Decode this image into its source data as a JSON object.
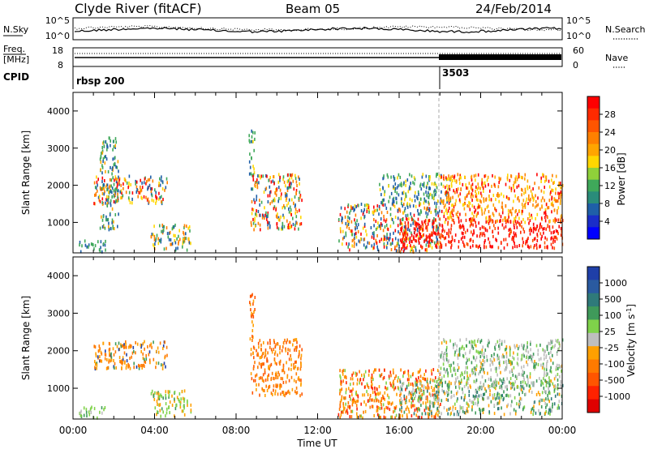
{
  "header": {
    "title": "Clyde River (fitACF)",
    "beam": "Beam 05",
    "date": "24/Feb/2014"
  },
  "nsky_panel": {
    "left_label": "N.Sky",
    "left_ticks": [
      "10^5",
      "10^0"
    ],
    "right_ticks": [
      "10^5",
      "10^0"
    ],
    "right_label": "N.Search"
  },
  "freq_panel": {
    "left_label_top": "Freq.",
    "left_label_bottom": "[MHz]",
    "left_ticks": [
      "18",
      "8"
    ],
    "right_ticks": [
      "60",
      "0"
    ],
    "right_label": "Nave"
  },
  "cpid_panel": {
    "label": "CPID",
    "segments": [
      {
        "start_hour": 0,
        "text": "rbsp 200"
      },
      {
        "start_hour": 18,
        "text": "3503"
      }
    ]
  },
  "x_axis": {
    "title": "Time UT",
    "tick_labels": [
      "00:00",
      "04:00",
      "08:00",
      "12:00",
      "16:00",
      "20:00",
      "00:00"
    ],
    "range_hours": [
      0,
      24
    ]
  },
  "power_colorbar": {
    "title": "Power [dB]",
    "tick_labels": [
      "28",
      "24",
      "20",
      "16",
      "12",
      "8",
      "4"
    ],
    "colors": [
      "#ff0000",
      "#ff2a00",
      "#ff5500",
      "#ff8000",
      "#ffa500",
      "#ffd700",
      "#8fd13a",
      "#3fa85a",
      "#2a8c7a",
      "#1f5fa8",
      "#1a2dc8",
      "#0000ff"
    ]
  },
  "velocity_colorbar": {
    "title": "Velocity [m s^-1]",
    "tick_labels": [
      "1000",
      "500",
      "100",
      "25",
      "-25",
      "-100",
      "-500",
      "-1000"
    ],
    "colors": [
      "#1f3fa8",
      "#2a5aa0",
      "#2f7a7a",
      "#3f9a5a",
      "#7fd24a",
      "#bebebe",
      "#ffa000",
      "#ff7a00",
      "#ff5500",
      "#ff2200",
      "#e00000"
    ]
  },
  "chart_data": [
    {
      "type": "heatmap",
      "title": "Power",
      "xlabel": "Time UT",
      "ylabel": "Slant Range [km]",
      "xlim_hours": [
        0,
        24
      ],
      "ylim": [
        180,
        4500
      ],
      "yticks": [
        "1000",
        "2000",
        "3000",
        "4000"
      ],
      "colorbar": "Power [dB]",
      "scatter_regions": [
        {
          "t": [
            1.0,
            4.6
          ],
          "r": [
            1500,
            2250
          ],
          "color_weights": {
            "#ff0000": 3,
            "#ff8000": 3,
            "#ffd700": 2,
            "#3fa85a": 2,
            "#1f5fa8": 2
          }
        },
        {
          "t": [
            0.2,
            1.6
          ],
          "r": [
            200,
            500
          ],
          "color_weights": {
            "#1f5fa8": 2,
            "#3fa85a": 2
          }
        },
        {
          "t": [
            3.8,
            5.8
          ],
          "r": [
            250,
            950
          ],
          "color_weights": {
            "#ff8000": 2,
            "#ffd700": 2,
            "#3fa85a": 2,
            "#1f5fa8": 2
          }
        },
        {
          "t": [
            1.3,
            2.2
          ],
          "r": [
            800,
            3300
          ],
          "color_weights": {
            "#3fa85a": 2,
            "#1f5fa8": 2,
            "#ffa500": 1
          }
        },
        {
          "t": [
            8.6,
            8.9
          ],
          "r": [
            2300,
            3500
          ],
          "color_weights": {
            "#3fa85a": 2,
            "#ffd700": 1,
            "#1f5fa8": 1
          }
        },
        {
          "t": [
            8.7,
            11.2
          ],
          "r": [
            800,
            2300
          ],
          "color_weights": {
            "#ff0000": 2,
            "#ff8000": 3,
            "#ffd700": 2,
            "#3fa85a": 2,
            "#1f5fa8": 2
          }
        },
        {
          "t": [
            13.0,
            18.0
          ],
          "r": [
            200,
            1500
          ],
          "color_weights": {
            "#ff0000": 2,
            "#ff8000": 2,
            "#ffd700": 2,
            "#3fa85a": 2,
            "#1f5fa8": 3
          }
        },
        {
          "t": [
            15.0,
            18.5
          ],
          "r": [
            1500,
            2300
          ],
          "color_weights": {
            "#3fa85a": 2,
            "#1f5fa8": 2,
            "#ffd700": 1
          }
        },
        {
          "t": [
            16.0,
            24.0
          ],
          "r": [
            300,
            1100
          ],
          "color_weights": {
            "#ff0000": 6,
            "#ff2a00": 3,
            "#ff5500": 2
          }
        },
        {
          "t": [
            18.0,
            24.0
          ],
          "r": [
            1000,
            2300
          ],
          "color_weights": {
            "#ff0000": 2,
            "#ff8000": 3,
            "#ffd700": 2,
            "#ffa500": 2
          }
        }
      ]
    },
    {
      "type": "heatmap",
      "title": "Velocity",
      "xlabel": "Time UT",
      "ylabel": "Slant Range [km]",
      "xlim_hours": [
        0,
        24
      ],
      "ylim": [
        180,
        4500
      ],
      "yticks": [
        "1000",
        "2000",
        "3000",
        "4000"
      ],
      "colorbar": "Velocity [m s^-1]",
      "scatter_regions": [
        {
          "t": [
            1.0,
            4.6
          ],
          "r": [
            1500,
            2250
          ],
          "color_weights": {
            "#ff7a00": 4,
            "#ffa000": 3,
            "#1f3fa8": 1,
            "#3f9a5a": 1
          }
        },
        {
          "t": [
            0.2,
            1.6
          ],
          "r": [
            200,
            500
          ],
          "color_weights": {
            "#7fd24a": 2,
            "#3f9a5a": 1,
            "#bebebe": 1
          }
        },
        {
          "t": [
            3.8,
            5.8
          ],
          "r": [
            250,
            950
          ],
          "color_weights": {
            "#ffa000": 2,
            "#7fd24a": 2,
            "#3f9a5a": 1
          }
        },
        {
          "t": [
            8.6,
            8.9
          ],
          "r": [
            2300,
            3500
          ],
          "color_weights": {
            "#ff5500": 2,
            "#ffa000": 1
          }
        },
        {
          "t": [
            8.7,
            11.2
          ],
          "r": [
            800,
            2300
          ],
          "color_weights": {
            "#ff7a00": 4,
            "#ffa000": 2,
            "#ff5500": 2
          }
        },
        {
          "t": [
            13.0,
            18.0
          ],
          "r": [
            200,
            1500
          ],
          "color_weights": {
            "#ff7a00": 3,
            "#ffa000": 3,
            "#ff2200": 2,
            "#7fd24a": 1
          }
        },
        {
          "t": [
            16.0,
            24.0
          ],
          "r": [
            300,
            1200
          ],
          "color_weights": {
            "#bebebe": 3,
            "#3f9a5a": 3,
            "#7fd24a": 2,
            "#2f7a7a": 2,
            "#ffa000": 2
          }
        },
        {
          "t": [
            18.0,
            24.0
          ],
          "r": [
            1000,
            2300
          ],
          "color_weights": {
            "#bebebe": 3,
            "#7fd24a": 2,
            "#3f9a5a": 2,
            "#ffa000": 1
          }
        }
      ]
    }
  ]
}
